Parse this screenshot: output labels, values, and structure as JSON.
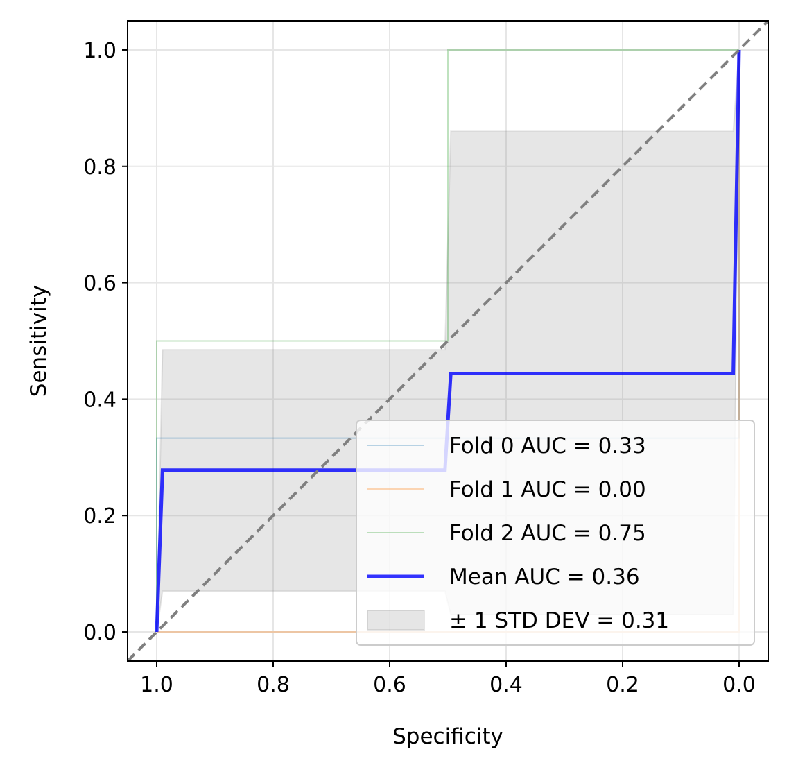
{
  "chart_data": {
    "type": "line",
    "title": "",
    "xlabel": "Specificity",
    "ylabel": "Sensitivity",
    "xlim": [
      1.05,
      -0.05
    ],
    "ylim": [
      -0.05,
      1.05
    ],
    "x_inverted": true,
    "grid": true,
    "xticks": [
      1.0,
      0.8,
      0.6,
      0.4,
      0.2,
      0.0
    ],
    "yticks": [
      0.0,
      0.2,
      0.4,
      0.6,
      0.8,
      1.0
    ],
    "xtick_labels": [
      "1.0",
      "0.8",
      "0.6",
      "0.4",
      "0.2",
      "0.0"
    ],
    "ytick_labels": [
      "0.0",
      "0.2",
      "0.4",
      "0.6",
      "0.8",
      "1.0"
    ],
    "legend_position": "lower-right",
    "series": [
      {
        "name": "Fold 0 AUC = 0.33",
        "color": "#1f77b4",
        "alpha": 0.3,
        "x": [
          1.0,
          1.0,
          0.0,
          0.0
        ],
        "y": [
          0.0,
          0.333,
          0.333,
          1.0
        ]
      },
      {
        "name": "Fold 1 AUC = 0.00",
        "color": "#ff7f0e",
        "alpha": 0.3,
        "x": [
          1.0,
          0.0,
          0.0
        ],
        "y": [
          0.0,
          0.0,
          1.0
        ]
      },
      {
        "name": "Fold 2 AUC = 0.75",
        "color": "#2ca02c",
        "alpha": 0.3,
        "x": [
          1.0,
          1.0,
          0.5,
          0.5,
          0.0
        ],
        "y": [
          0.0,
          0.5,
          0.5,
          1.0,
          1.0
        ]
      },
      {
        "name": "Mean AUC = 0.36",
        "color": "#0000ff",
        "alpha": 0.8,
        "x": [
          1.0,
          0.99,
          0.505,
          0.495,
          0.01,
          0.0
        ],
        "y": [
          0.0,
          0.278,
          0.278,
          0.444,
          0.444,
          1.0
        ]
      }
    ],
    "std_band": {
      "name": "± 1 STD DEV = 0.31",
      "color": "#808080",
      "alpha": 0.2,
      "x": [
        1.0,
        0.99,
        0.505,
        0.495,
        0.01,
        0.0
      ],
      "upper": [
        0.0,
        0.485,
        0.485,
        0.86,
        0.86,
        1.0
      ],
      "lower": [
        0.0,
        0.07,
        0.07,
        0.03,
        0.03,
        1.0
      ]
    },
    "reference_line": {
      "x": [
        1.05,
        -0.05
      ],
      "y": [
        -0.05,
        1.05
      ],
      "color": "#808080",
      "style": "dashed"
    }
  }
}
